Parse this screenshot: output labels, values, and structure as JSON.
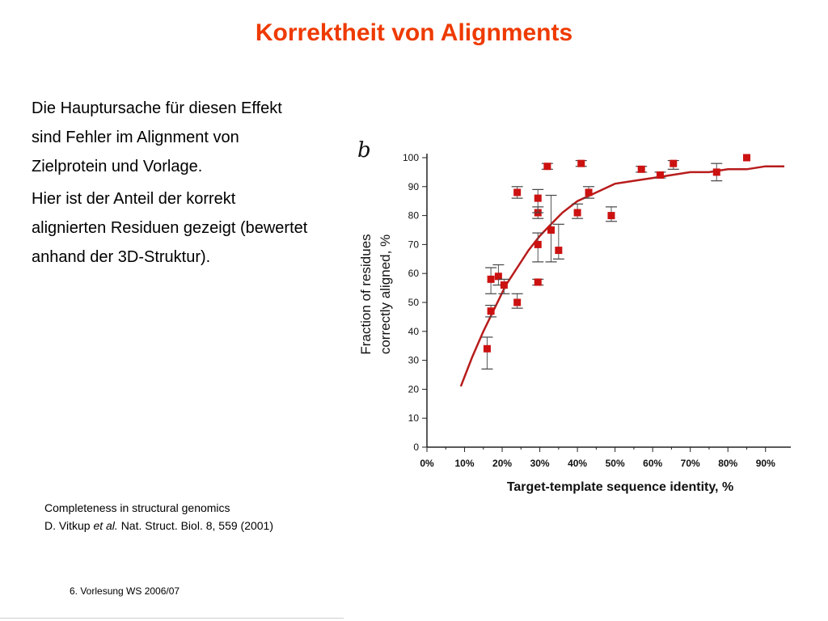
{
  "slide": {
    "title": "Korrektheit von Alignments",
    "title_color": "#ee3a00",
    "paragraphs": [
      "Die Hauptursache für diesen Effekt sind Fehler im Alignment von Zielprotein und Vorlage.",
      "Hier ist der Anteil der korrekt alignierten Residuen gezeigt (bewertet anhand der 3D-Struktur)."
    ],
    "citation": {
      "line1": "Completeness in structural genomics",
      "authors": "D. Vitkup",
      "etal": "et al.",
      "rest": "Nat. Struct. Biol. 8, 559  (2001)"
    },
    "footer": "6. Vorlesung WS 2006/07"
  },
  "chart_data": {
    "type": "scatter",
    "panel_label": "b",
    "xlabel": "Target-template sequence identity, %",
    "ylabel_line1": "Fraction of residues",
    "ylabel_line2": "correctly aligned, %",
    "xlim": [
      0,
      95
    ],
    "ylim": [
      0,
      100
    ],
    "x_ticks": [
      0,
      10,
      20,
      30,
      40,
      50,
      60,
      70,
      80,
      90
    ],
    "x_tick_labels": [
      "0%",
      "10%",
      "20%",
      "30%",
      "40%",
      "50%",
      "60%",
      "70%",
      "80%",
      "90%"
    ],
    "y_ticks": [
      0,
      10,
      20,
      30,
      40,
      50,
      60,
      70,
      80,
      90,
      100
    ],
    "y_tick_labels": [
      "0",
      "10",
      "20",
      "30",
      "40",
      "50",
      "60",
      "70",
      "80",
      "90",
      "100"
    ],
    "grid": false,
    "marker_color": "#cc1111",
    "curve_color": "#b81c1c",
    "points": [
      {
        "x": 16.0,
        "y": 34,
        "lo": 27,
        "hi": 38
      },
      {
        "x": 17.0,
        "y": 47,
        "lo": 45,
        "hi": 49
      },
      {
        "x": 17.0,
        "y": 58,
        "lo": 53,
        "hi": 62
      },
      {
        "x": 19.0,
        "y": 59,
        "lo": 56,
        "hi": 63
      },
      {
        "x": 20.5,
        "y": 56,
        "lo": 53,
        "hi": 58
      },
      {
        "x": 24.0,
        "y": 50,
        "lo": 48,
        "hi": 53
      },
      {
        "x": 24.0,
        "y": 88,
        "lo": 86,
        "hi": 90
      },
      {
        "x": 29.5,
        "y": 57,
        "lo": 56,
        "hi": 58
      },
      {
        "x": 29.5,
        "y": 70,
        "lo": 64,
        "hi": 74
      },
      {
        "x": 29.5,
        "y": 81,
        "lo": 79,
        "hi": 83
      },
      {
        "x": 29.5,
        "y": 86,
        "lo": 81,
        "hi": 89
      },
      {
        "x": 32.0,
        "y": 97,
        "lo": 96,
        "hi": 98
      },
      {
        "x": 33.0,
        "y": 75,
        "lo": 64,
        "hi": 87
      },
      {
        "x": 35.0,
        "y": 68,
        "lo": 65,
        "hi": 77
      },
      {
        "x": 40.0,
        "y": 81,
        "lo": 79,
        "hi": 84
      },
      {
        "x": 41.0,
        "y": 98,
        "lo": 97,
        "hi": 99
      },
      {
        "x": 43.0,
        "y": 88,
        "lo": 86,
        "hi": 90
      },
      {
        "x": 49.0,
        "y": 80,
        "lo": 78,
        "hi": 83
      },
      {
        "x": 57.0,
        "y": 96,
        "lo": 95,
        "hi": 97
      },
      {
        "x": 62.0,
        "y": 94,
        "lo": 93,
        "hi": 95
      },
      {
        "x": 65.5,
        "y": 98,
        "lo": 96,
        "hi": 99
      },
      {
        "x": 77.0,
        "y": 95,
        "lo": 92,
        "hi": 98
      },
      {
        "x": 85.0,
        "y": 100,
        "lo": 100,
        "hi": 100
      }
    ],
    "fit_curve": {
      "x": [
        9,
        12,
        15,
        18,
        21,
        24,
        27,
        30,
        33,
        36,
        40,
        45,
        50,
        55,
        60,
        65,
        70,
        75,
        80,
        85,
        90,
        95
      ],
      "y": [
        21,
        31,
        40,
        48,
        56,
        62,
        68,
        73,
        77,
        81,
        85,
        88,
        91,
        92,
        93,
        94,
        95,
        95,
        96,
        96,
        97,
        97
      ]
    }
  }
}
